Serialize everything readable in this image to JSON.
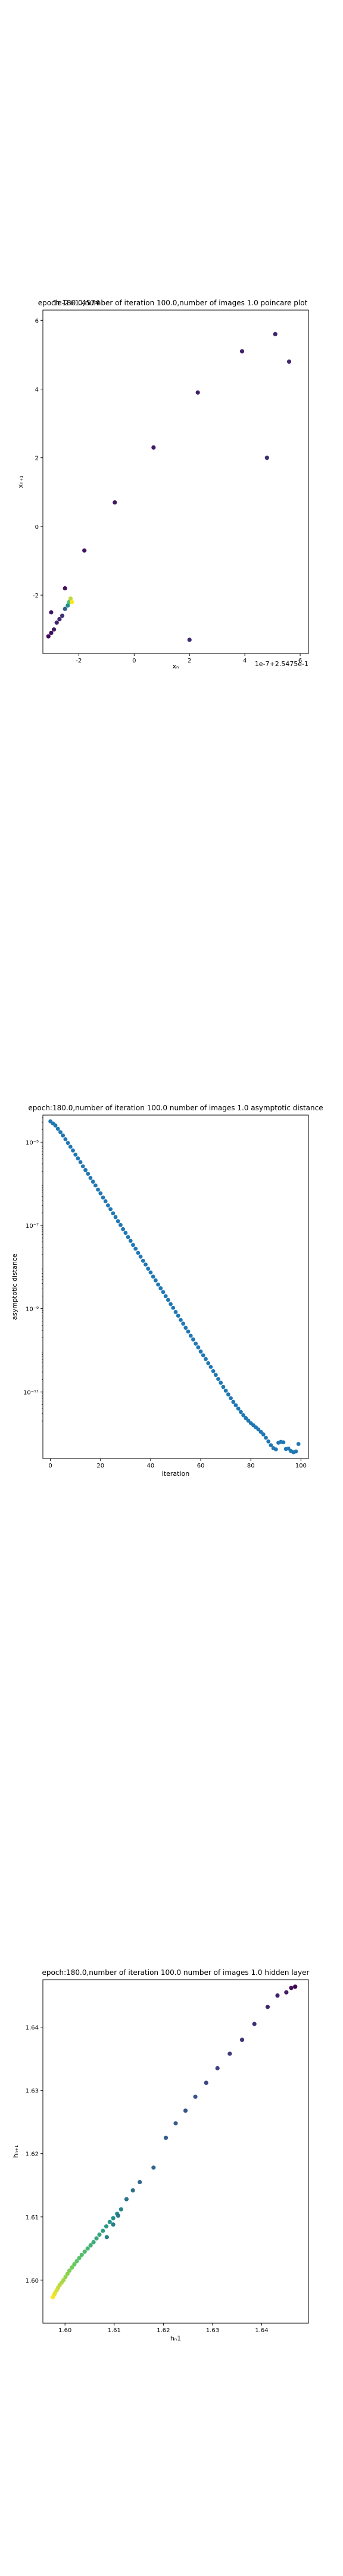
{
  "chart_data": [
    {
      "type": "scatter",
      "title": "epoch:180.0,number of iteration 100.0,number of images 1.0 poincare plot",
      "overlay_label": "1e-2+1.4574",
      "xlabel": "xₙ",
      "ylabel": "xₙ₊₁",
      "offset_label": "1e-7+2.5475e-1",
      "xlim": [
        -3.3,
        6.3
      ],
      "ylim": [
        -3.7,
        6.3
      ],
      "xticks": [
        "-2",
        "0",
        "2",
        "4",
        "6"
      ],
      "xtick_values": [
        -2,
        0,
        2,
        4,
        6
      ],
      "yticks": [
        "-2",
        "0",
        "2",
        "4",
        "6"
      ],
      "ytick_values": [
        -2,
        0,
        2,
        4,
        6
      ],
      "colormap": "viridis",
      "points": {
        "x": [
          -3.1,
          -3.0,
          -3.0,
          -2.9,
          -2.8,
          -2.7,
          -2.6,
          -2.5,
          -2.4,
          -2.35,
          -2.3,
          -2.25,
          -2.5,
          -1.8,
          -0.7,
          0.7,
          2.3,
          3.9,
          5.1,
          5.6,
          2.0,
          4.8
        ],
        "y": [
          -3.2,
          -3.1,
          -2.5,
          -3.0,
          -2.8,
          -2.7,
          -2.6,
          -2.4,
          -2.3,
          -2.2,
          -2.1,
          -2.2,
          -1.8,
          -0.7,
          0.7,
          2.3,
          3.9,
          5.1,
          5.6,
          4.8,
          -3.3,
          2.0
        ],
        "c": [
          0.02,
          0.04,
          0.06,
          0.08,
          0.1,
          0.12,
          0.15,
          0.3,
          0.5,
          0.7,
          0.9,
          1.0,
          0.05,
          0.06,
          0.07,
          0.08,
          0.09,
          0.1,
          0.11,
          0.12,
          0.13,
          0.14
        ]
      }
    },
    {
      "type": "scatter",
      "title": "epoch:180.0,number of iteration 100.0  number of images 1.0 asymptotic distance",
      "xlabel": "iteration",
      "ylabel": "asymptotic distance",
      "xlim": [
        -3,
        103
      ],
      "ylog": true,
      "ylim_log10": [
        -12.6,
        -4.35
      ],
      "xticks": [
        "0",
        "20",
        "40",
        "60",
        "80",
        "100"
      ],
      "xtick_values": [
        0,
        20,
        40,
        60,
        80,
        100
      ],
      "yticks": [
        "10⁻⁵",
        "10⁻⁷",
        "10⁻⁹",
        "10⁻¹¹"
      ],
      "ytick_log10": [
        -5,
        -7,
        -9,
        -11
      ],
      "color": "#1f77b4",
      "points_log10": [
        -4.5,
        -4.55,
        -4.6,
        -4.68,
        -4.76,
        -4.84,
        -4.93,
        -5.02,
        -5.11,
        -5.2,
        -5.3,
        -5.39,
        -5.48,
        -5.58,
        -5.67,
        -5.76,
        -5.86,
        -5.95,
        -6.04,
        -6.14,
        -6.23,
        -6.33,
        -6.42,
        -6.52,
        -6.61,
        -6.71,
        -6.8,
        -6.9,
        -6.99,
        -7.09,
        -7.18,
        -7.28,
        -7.37,
        -7.47,
        -7.56,
        -7.66,
        -7.75,
        -7.85,
        -7.94,
        -8.04,
        -8.13,
        -8.23,
        -8.32,
        -8.42,
        -8.51,
        -8.6,
        -8.7,
        -8.79,
        -8.89,
        -8.98,
        -9.08,
        -9.17,
        -9.27,
        -9.36,
        -9.46,
        -9.55,
        -9.65,
        -9.74,
        -9.84,
        -9.93,
        -10.03,
        -10.12,
        -10.21,
        -10.31,
        -10.4,
        -10.5,
        -10.59,
        -10.69,
        -10.78,
        -10.88,
        -10.97,
        -11.06,
        -11.15,
        -11.24,
        -11.32,
        -11.4,
        -11.48,
        -11.56,
        -11.63,
        -11.69,
        -11.75,
        -11.8,
        -11.85,
        -11.9,
        -11.96,
        -12.02,
        -12.1,
        -12.19,
        -12.28,
        -12.35,
        -12.38,
        -12.22,
        -12.2,
        -12.21,
        -12.37,
        -12.36,
        -12.42,
        -12.45,
        -12.43,
        -12.25
      ]
    },
    {
      "type": "scatter",
      "title": "epoch:180.0,number of iteration 100.0  number of images 1.0 hidden layer",
      "xlabel": "hₙ1",
      "ylabel": "hₙ₊₁",
      "xlim": [
        1.5955,
        1.6495
      ],
      "ylim": [
        1.5932,
        1.6475
      ],
      "xticks": [
        "1.60",
        "1.61",
        "1.62",
        "1.63",
        "1.64"
      ],
      "xtick_values": [
        1.6,
        1.61,
        1.62,
        1.63,
        1.64
      ],
      "yticks": [
        "1.60",
        "1.61",
        "1.62",
        "1.63",
        "1.64"
      ],
      "ytick_values": [
        1.6,
        1.61,
        1.62,
        1.63,
        1.64
      ],
      "colormap": "viridis",
      "points": {
        "x": [
          1.5975,
          1.5978,
          1.598,
          1.5983,
          1.5986,
          1.5989,
          1.5993,
          1.5997,
          1.6001,
          1.6005,
          1.6009,
          1.6014,
          1.6019,
          1.6024,
          1.6029,
          1.6034,
          1.604,
          1.6046,
          1.6052,
          1.6058,
          1.6064,
          1.607,
          1.6077,
          1.6084,
          1.6091,
          1.6098,
          1.6106,
          1.6114,
          1.6085,
          1.6098,
          1.6108,
          1.6125,
          1.6138,
          1.6152,
          1.618,
          1.6205,
          1.6225,
          1.6245,
          1.6265,
          1.6287,
          1.631,
          1.6335,
          1.636,
          1.6385,
          1.6412,
          1.6432,
          1.645,
          1.646,
          1.6468
        ],
        "y": [
          1.5973,
          1.5977,
          1.598,
          1.5984,
          1.5988,
          1.5992,
          1.5996,
          1.6,
          1.6005,
          1.601,
          1.6015,
          1.602,
          1.6025,
          1.603,
          1.6035,
          1.604,
          1.6045,
          1.605,
          1.6055,
          1.606,
          1.6066,
          1.6072,
          1.6078,
          1.6085,
          1.6092,
          1.6098,
          1.6105,
          1.6112,
          1.6068,
          1.6088,
          1.6102,
          1.6128,
          1.6142,
          1.6155,
          1.6178,
          1.6225,
          1.6248,
          1.6268,
          1.629,
          1.6312,
          1.6335,
          1.6358,
          1.638,
          1.6405,
          1.6432,
          1.645,
          1.6455,
          1.6462,
          1.6464
        ],
        "c": [
          1.0,
          0.98,
          0.96,
          0.94,
          0.92,
          0.9,
          0.88,
          0.86,
          0.84,
          0.82,
          0.8,
          0.78,
          0.76,
          0.74,
          0.72,
          0.7,
          0.68,
          0.66,
          0.64,
          0.62,
          0.6,
          0.58,
          0.56,
          0.54,
          0.52,
          0.5,
          0.48,
          0.46,
          0.44,
          0.42,
          0.4,
          0.38,
          0.36,
          0.34,
          0.32,
          0.3,
          0.28,
          0.26,
          0.24,
          0.22,
          0.2,
          0.18,
          0.16,
          0.14,
          0.12,
          0.1,
          0.08,
          0.04,
          0.0
        ]
      }
    }
  ]
}
